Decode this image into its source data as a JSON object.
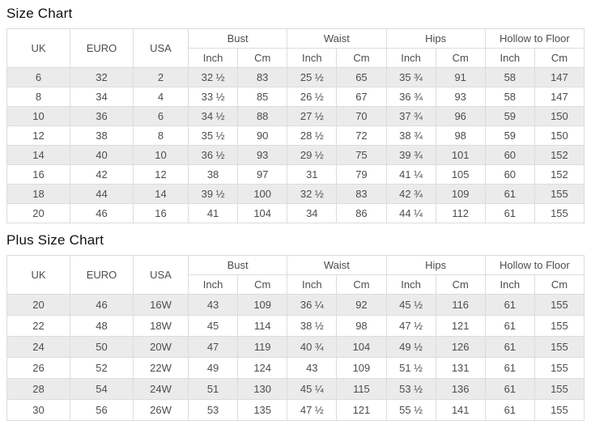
{
  "colors": {
    "stripe": "#ebebeb",
    "border": "#dcdcdc",
    "cell_text": "#4d4d4d",
    "title_text": "#111111"
  },
  "tables": [
    {
      "title": "Size Chart",
      "columns": [
        "UK",
        "EURO",
        "USA"
      ],
      "groups": [
        {
          "label": "Bust",
          "sub": [
            "Inch",
            "Cm"
          ]
        },
        {
          "label": "Waist",
          "sub": [
            "Inch",
            "Cm"
          ]
        },
        {
          "label": "Hips",
          "sub": [
            "Inch",
            "Cm"
          ]
        },
        {
          "label": "Hollow to Floor",
          "sub": [
            "Inch",
            "Cm"
          ]
        }
      ],
      "rows": [
        [
          "6",
          "32",
          "2",
          "32 ½",
          "83",
          "25 ½",
          "65",
          "35 ¾",
          "91",
          "58",
          "147"
        ],
        [
          "8",
          "34",
          "4",
          "33 ½",
          "85",
          "26 ½",
          "67",
          "36 ¾",
          "93",
          "58",
          "147"
        ],
        [
          "10",
          "36",
          "6",
          "34 ½",
          "88",
          "27 ½",
          "70",
          "37 ¾",
          "96",
          "59",
          "150"
        ],
        [
          "12",
          "38",
          "8",
          "35 ½",
          "90",
          "28 ½",
          "72",
          "38 ¾",
          "98",
          "59",
          "150"
        ],
        [
          "14",
          "40",
          "10",
          "36 ½",
          "93",
          "29 ½",
          "75",
          "39 ¾",
          "101",
          "60",
          "152"
        ],
        [
          "16",
          "42",
          "12",
          "38",
          "97",
          "31",
          "79",
          "41 ¼",
          "105",
          "60",
          "152"
        ],
        [
          "18",
          "44",
          "14",
          "39 ½",
          "100",
          "32 ½",
          "83",
          "42 ¾",
          "109",
          "61",
          "155"
        ],
        [
          "20",
          "46",
          "16",
          "41",
          "104",
          "34",
          "86",
          "44 ¼",
          "112",
          "61",
          "155"
        ]
      ]
    },
    {
      "title": "Plus Size Chart",
      "columns": [
        "UK",
        "EURO",
        "USA"
      ],
      "groups": [
        {
          "label": "Bust",
          "sub": [
            "Inch",
            "Cm"
          ]
        },
        {
          "label": "Waist",
          "sub": [
            "Inch",
            "Cm"
          ]
        },
        {
          "label": "Hips",
          "sub": [
            "Inch",
            "Cm"
          ]
        },
        {
          "label": "Hollow to Floor",
          "sub": [
            "Inch",
            "Cm"
          ]
        }
      ],
      "rows": [
        [
          "20",
          "46",
          "16W",
          "43",
          "109",
          "36 ¼",
          "92",
          "45 ½",
          "116",
          "61",
          "155"
        ],
        [
          "22",
          "48",
          "18W",
          "45",
          "114",
          "38 ½",
          "98",
          "47 ½",
          "121",
          "61",
          "155"
        ],
        [
          "24",
          "50",
          "20W",
          "47",
          "119",
          "40 ¾",
          "104",
          "49 ½",
          "126",
          "61",
          "155"
        ],
        [
          "26",
          "52",
          "22W",
          "49",
          "124",
          "43",
          "109",
          "51 ½",
          "131",
          "61",
          "155"
        ],
        [
          "28",
          "54",
          "24W",
          "51",
          "130",
          "45 ¼",
          "115",
          "53 ½",
          "136",
          "61",
          "155"
        ],
        [
          "30",
          "56",
          "26W",
          "53",
          "135",
          "47 ½",
          "121",
          "55 ½",
          "141",
          "61",
          "155"
        ]
      ]
    }
  ]
}
